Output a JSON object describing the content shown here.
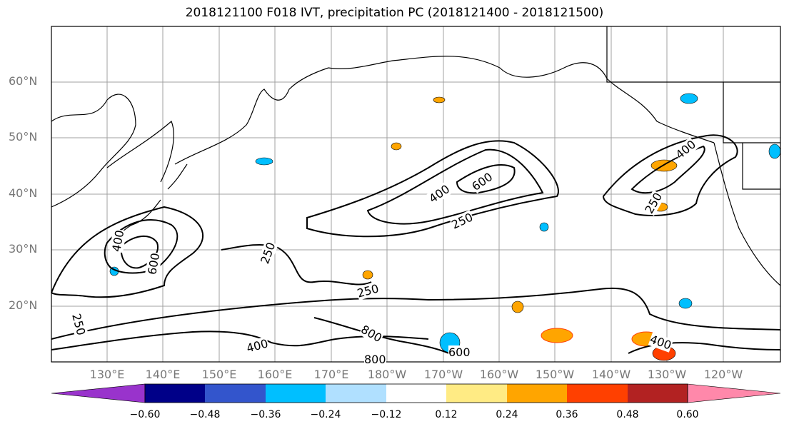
{
  "title": "2018121100 F018 IVT, precipitation PC (2018121400 - 2018121500)",
  "lat_labels": [
    "60°N",
    "50°N",
    "40°N",
    "30°N",
    "20°N"
  ],
  "lon_labels": [
    "130°E",
    "140°E",
    "150°E",
    "160°E",
    "170°E",
    "180°W",
    "170°W",
    "160°W",
    "150°W",
    "140°W",
    "130°W",
    "120°W"
  ],
  "contour_labels": [
    "400",
    "600",
    "250",
    "400",
    "600",
    "250",
    "250",
    "250",
    "800",
    "800",
    "400",
    "600",
    "400",
    "250",
    "400"
  ],
  "colorbar": {
    "tick_labels": [
      "−0.60",
      "−0.48",
      "−0.36",
      "−0.24",
      "−0.12",
      "0.12",
      "0.24",
      "0.36",
      "0.48",
      "0.60"
    ],
    "colors": [
      "#9933cc",
      "#000088",
      "#3355cc",
      "#00bfff",
      "#b0e0ff",
      "#ffffff",
      "#ffeb84",
      "#ffa500",
      "#ff4000",
      "#b22222",
      "#ff88aa"
    ]
  }
}
